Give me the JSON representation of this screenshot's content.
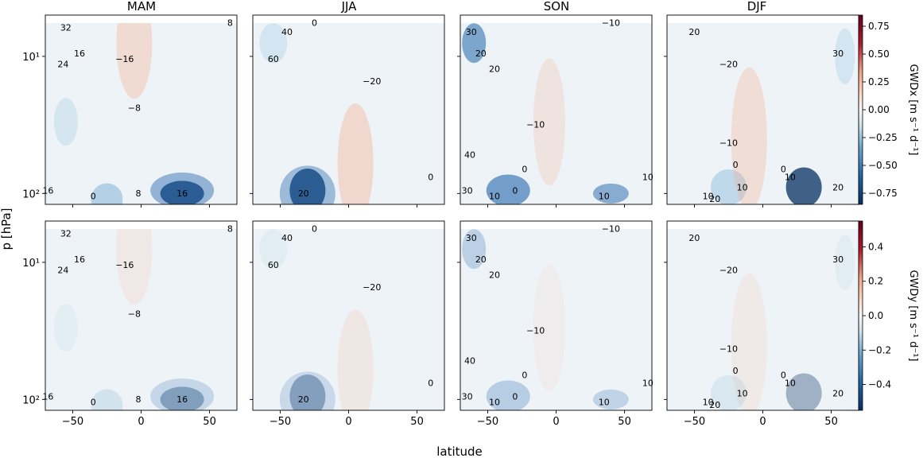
{
  "figure": {
    "ylabel": "p [hPa]",
    "xlabel": "latitude",
    "rows": [
      {
        "colorbar_label": "GWDx [m s⁻¹ d⁻¹]",
        "colorbar_ticks": [
          "0.75",
          "0.50",
          "0.25",
          "0.00",
          "−0.25",
          "−0.50",
          "−0.75"
        ],
        "colorbar_tick_values": [
          0.75,
          0.5,
          0.25,
          0,
          -0.25,
          -0.5,
          -0.75
        ],
        "colorbar_range": [
          -0.85,
          0.85
        ]
      },
      {
        "colorbar_label": "GWDy [m s⁻¹ d⁻¹]",
        "colorbar_ticks": [
          "0.4",
          "0.2",
          "0.0",
          "−0.2",
          "−0.4"
        ],
        "colorbar_tick_values": [
          0.4,
          0.2,
          0,
          -0.2,
          -0.4
        ],
        "colorbar_range": [
          -0.55,
          0.55
        ]
      }
    ]
  },
  "chart_data": {
    "type": "heatmap",
    "panels": [
      "MAM",
      "JJA",
      "SON",
      "DJF"
    ],
    "x_ticks": [
      "−50",
      "0",
      "50"
    ],
    "x_tick_values": [
      -50,
      0,
      50
    ],
    "xlim": [
      -70,
      70
    ],
    "y_scale": "log",
    "y_inverted": true,
    "y_ticks": [
      "10¹",
      "10²"
    ],
    "y_tick_values": [
      10,
      100
    ],
    "grid": false,
    "colormap": "RdBu_r",
    "contour_labels": {
      "MAM": [
        "32",
        "24",
        "16",
        "−16",
        "−8",
        "0",
        "8",
        "16",
        "8",
        "16"
      ],
      "JJA": [
        "40",
        "60",
        "0",
        "−20",
        "20",
        "0"
      ],
      "SON": [
        "−10",
        "20",
        "30",
        "20",
        "40",
        "−10",
        "0",
        "10",
        "0",
        "10",
        "10",
        "30"
      ],
      "DJF": [
        "20",
        "30",
        "−20",
        "−10",
        "0",
        "0",
        "10",
        "10",
        "10",
        "20",
        "20"
      ]
    }
  }
}
